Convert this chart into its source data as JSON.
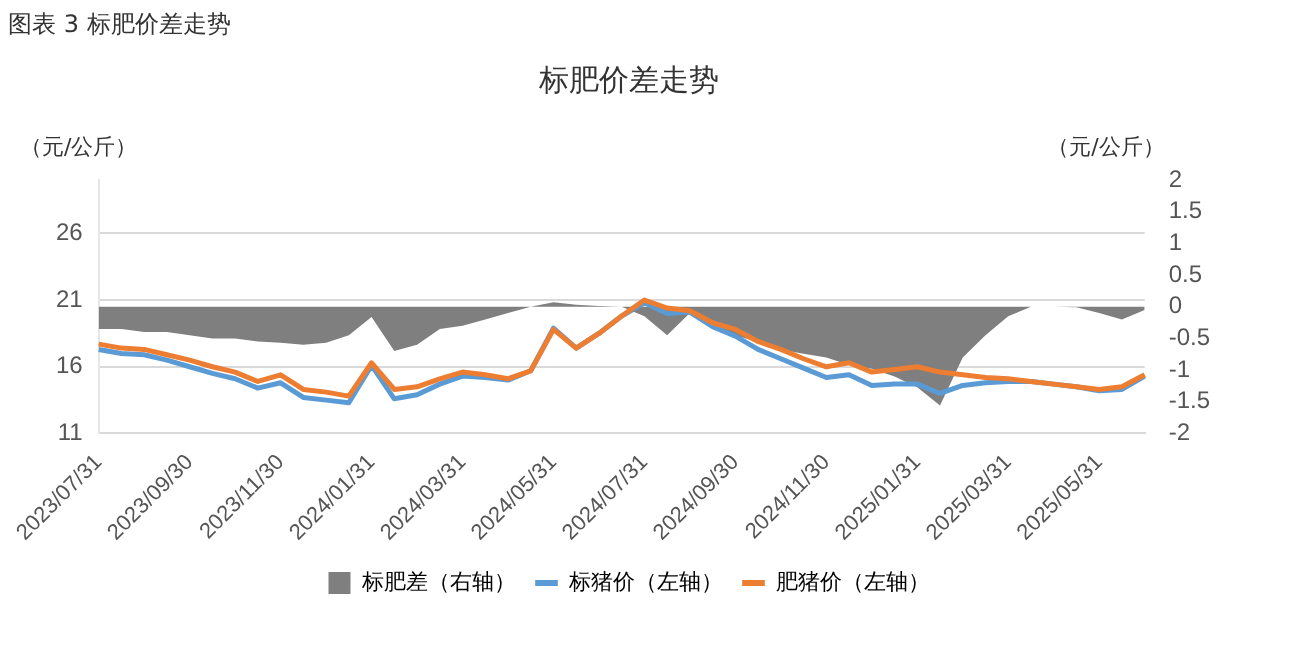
{
  "chart_data": {
    "type": "line",
    "title": "标肥价差走势",
    "ylabel": "（元/公斤）",
    "y2label": "（元/公斤）",
    "annotations": [
      "图表 3  标肥价差走势"
    ],
    "categories": [
      "2023/07/31",
      null,
      null,
      null,
      "2023/09/30",
      null,
      null,
      null,
      "2023/11/30",
      null,
      null,
      null,
      "2024/01/31",
      null,
      null,
      null,
      "2024/03/31",
      null,
      null,
      null,
      "2024/05/31",
      null,
      null,
      null,
      "2024/07/31",
      null,
      null,
      null,
      "2024/09/30",
      null,
      null,
      null,
      "2024/11/30",
      null,
      null,
      null,
      "2025/01/31",
      null,
      null,
      null,
      "2025/03/31",
      null,
      null,
      null,
      "2025/05/31",
      null,
      null
    ],
    "series": [
      {
        "name": "标肥差（右轴）",
        "type": "area",
        "axis": "y2",
        "color": "#7f7f7f",
        "values": [
          -0.35,
          -0.35,
          -0.4,
          -0.4,
          -0.45,
          -0.5,
          -0.5,
          -0.55,
          -0.57,
          -0.6,
          -0.57,
          -0.45,
          -0.16,
          -0.7,
          -0.6,
          -0.35,
          -0.3,
          -0.2,
          -0.1,
          0,
          0.07,
          0.03,
          0.01,
          0,
          -0.15,
          -0.45,
          -0.1,
          -0.33,
          -0.45,
          -0.56,
          -0.68,
          -0.74,
          -0.8,
          -0.92,
          -0.98,
          -1.1,
          -1.27,
          -1.56,
          -0.8,
          -0.45,
          -0.15,
          0,
          0,
          -0.01,
          -0.1,
          -0.2,
          -0.05
        ]
      },
      {
        "name": "标猪价（左轴）",
        "color": "#5b9bd5",
        "values": [
          17.3,
          17.0,
          16.9,
          16.5,
          16.0,
          15.5,
          15.1,
          14.4,
          14.8,
          13.7,
          13.5,
          13.3,
          16.1,
          13.6,
          13.9,
          14.7,
          15.3,
          15.2,
          15.0,
          15.7,
          18.9,
          17.4,
          18.5,
          19.8,
          20.8,
          20.0,
          20.1,
          19.0,
          18.3,
          17.3,
          16.6,
          15.9,
          15.2,
          15.4,
          14.6,
          14.7,
          14.7,
          14.0,
          14.6,
          14.8,
          14.9,
          14.9,
          14.7,
          14.5,
          14.2,
          14.3,
          15.3
        ]
      },
      {
        "name": "肥猪价（左轴）",
        "color": "#ed7d31",
        "values": [
          17.7,
          17.4,
          17.3,
          16.9,
          16.5,
          16.0,
          15.6,
          14.9,
          15.4,
          14.3,
          14.1,
          13.8,
          16.3,
          14.3,
          14.5,
          15.1,
          15.6,
          15.4,
          15.1,
          15.7,
          18.8,
          17.4,
          18.5,
          19.8,
          21.0,
          20.4,
          20.2,
          19.3,
          18.8,
          17.9,
          17.3,
          16.6,
          16.0,
          16.3,
          15.6,
          15.8,
          16.0,
          15.6,
          15.4,
          15.2,
          15.1,
          14.9,
          14.7,
          14.5,
          14.3,
          14.5,
          15.4
        ]
      }
    ],
    "ylim": [
      11,
      30
    ],
    "yticks": [
      11,
      16,
      21,
      26
    ],
    "y2lim": [
      -2,
      2
    ],
    "y2ticks": [
      -2,
      -1.5,
      -1,
      -0.5,
      0,
      0.5,
      1,
      1.5,
      2
    ],
    "grid": "y",
    "legend": "bottom",
    "marker": "none",
    "line_style": "solid"
  }
}
